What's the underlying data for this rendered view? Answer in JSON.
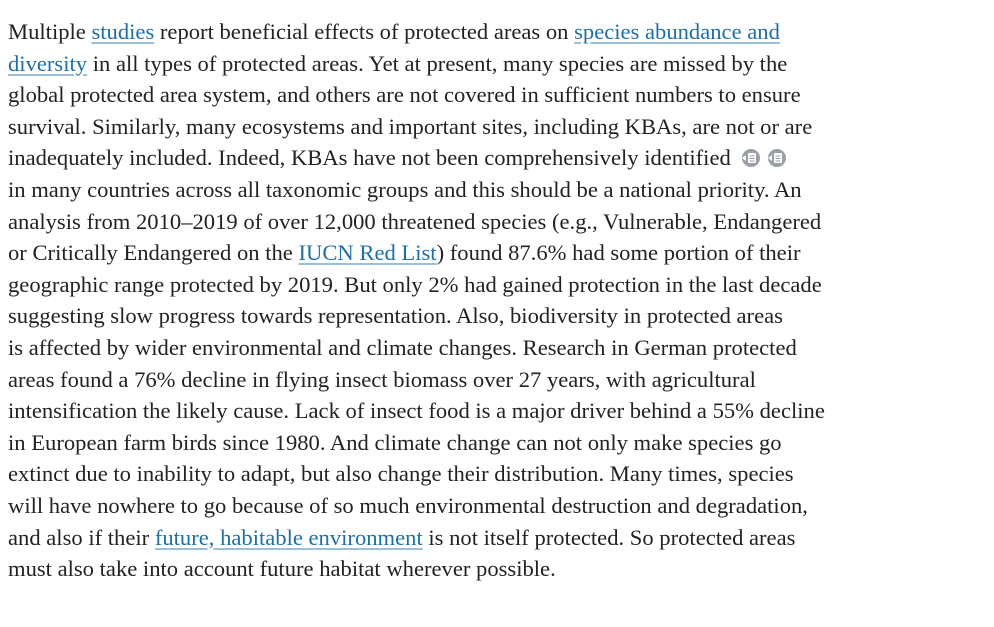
{
  "paragraph": {
    "lines": [
      [
        "Multiple ",
        "studies",
        " report beneficial effects of protected areas on ",
        "species abundance and"
      ],
      [
        "diversity",
        " in all types of protected areas. Yet at present, many species are missed by the"
      ],
      [
        "global protected area system, and others are not covered in sufficient numbers to ensure"
      ],
      [
        "survival. Similarly, many ecosystems and important sites, including KBAs, are not or are"
      ],
      [
        "inadequately included. Indeed, KBAs have not been comprehensively identified"
      ],
      [
        "in many countries across all taxonomic groups and this should be a national priority. An"
      ],
      [
        "analysis from 2010–2019 of over 12,000 threatened species (e.g., Vulnerable, Endangered"
      ],
      [
        "or Critically Endangered on the ",
        "IUCN Red List",
        ") found 87.6% had some portion of their"
      ],
      [
        "geographic range protected by 2019. But only 2% had gained protection in the last decade"
      ],
      [
        "suggesting slow progress towards representation. Also, biodiversity in protected areas"
      ],
      [
        "is affected by wider environmental and climate changes. Research in German protected"
      ],
      [
        "areas found a 76% decline in flying insect biomass over 27 years, with agricultural"
      ],
      [
        "intensification the likely cause. Lack of insect food is a major driver behind a 55% decline"
      ],
      [
        "in European farm birds since 1980. And climate change can not only make species go"
      ],
      [
        "extinct due to inability to adapt, but also change their distribution. Many times, species"
      ],
      [
        "will have nowhere to go because of so much environmental destruction and degradation,"
      ],
      [
        "and also if their ",
        "future, habitable environment",
        " is not itself protected. So protected areas"
      ],
      [
        "must also take into account future habitat wherever possible."
      ]
    ]
  }
}
